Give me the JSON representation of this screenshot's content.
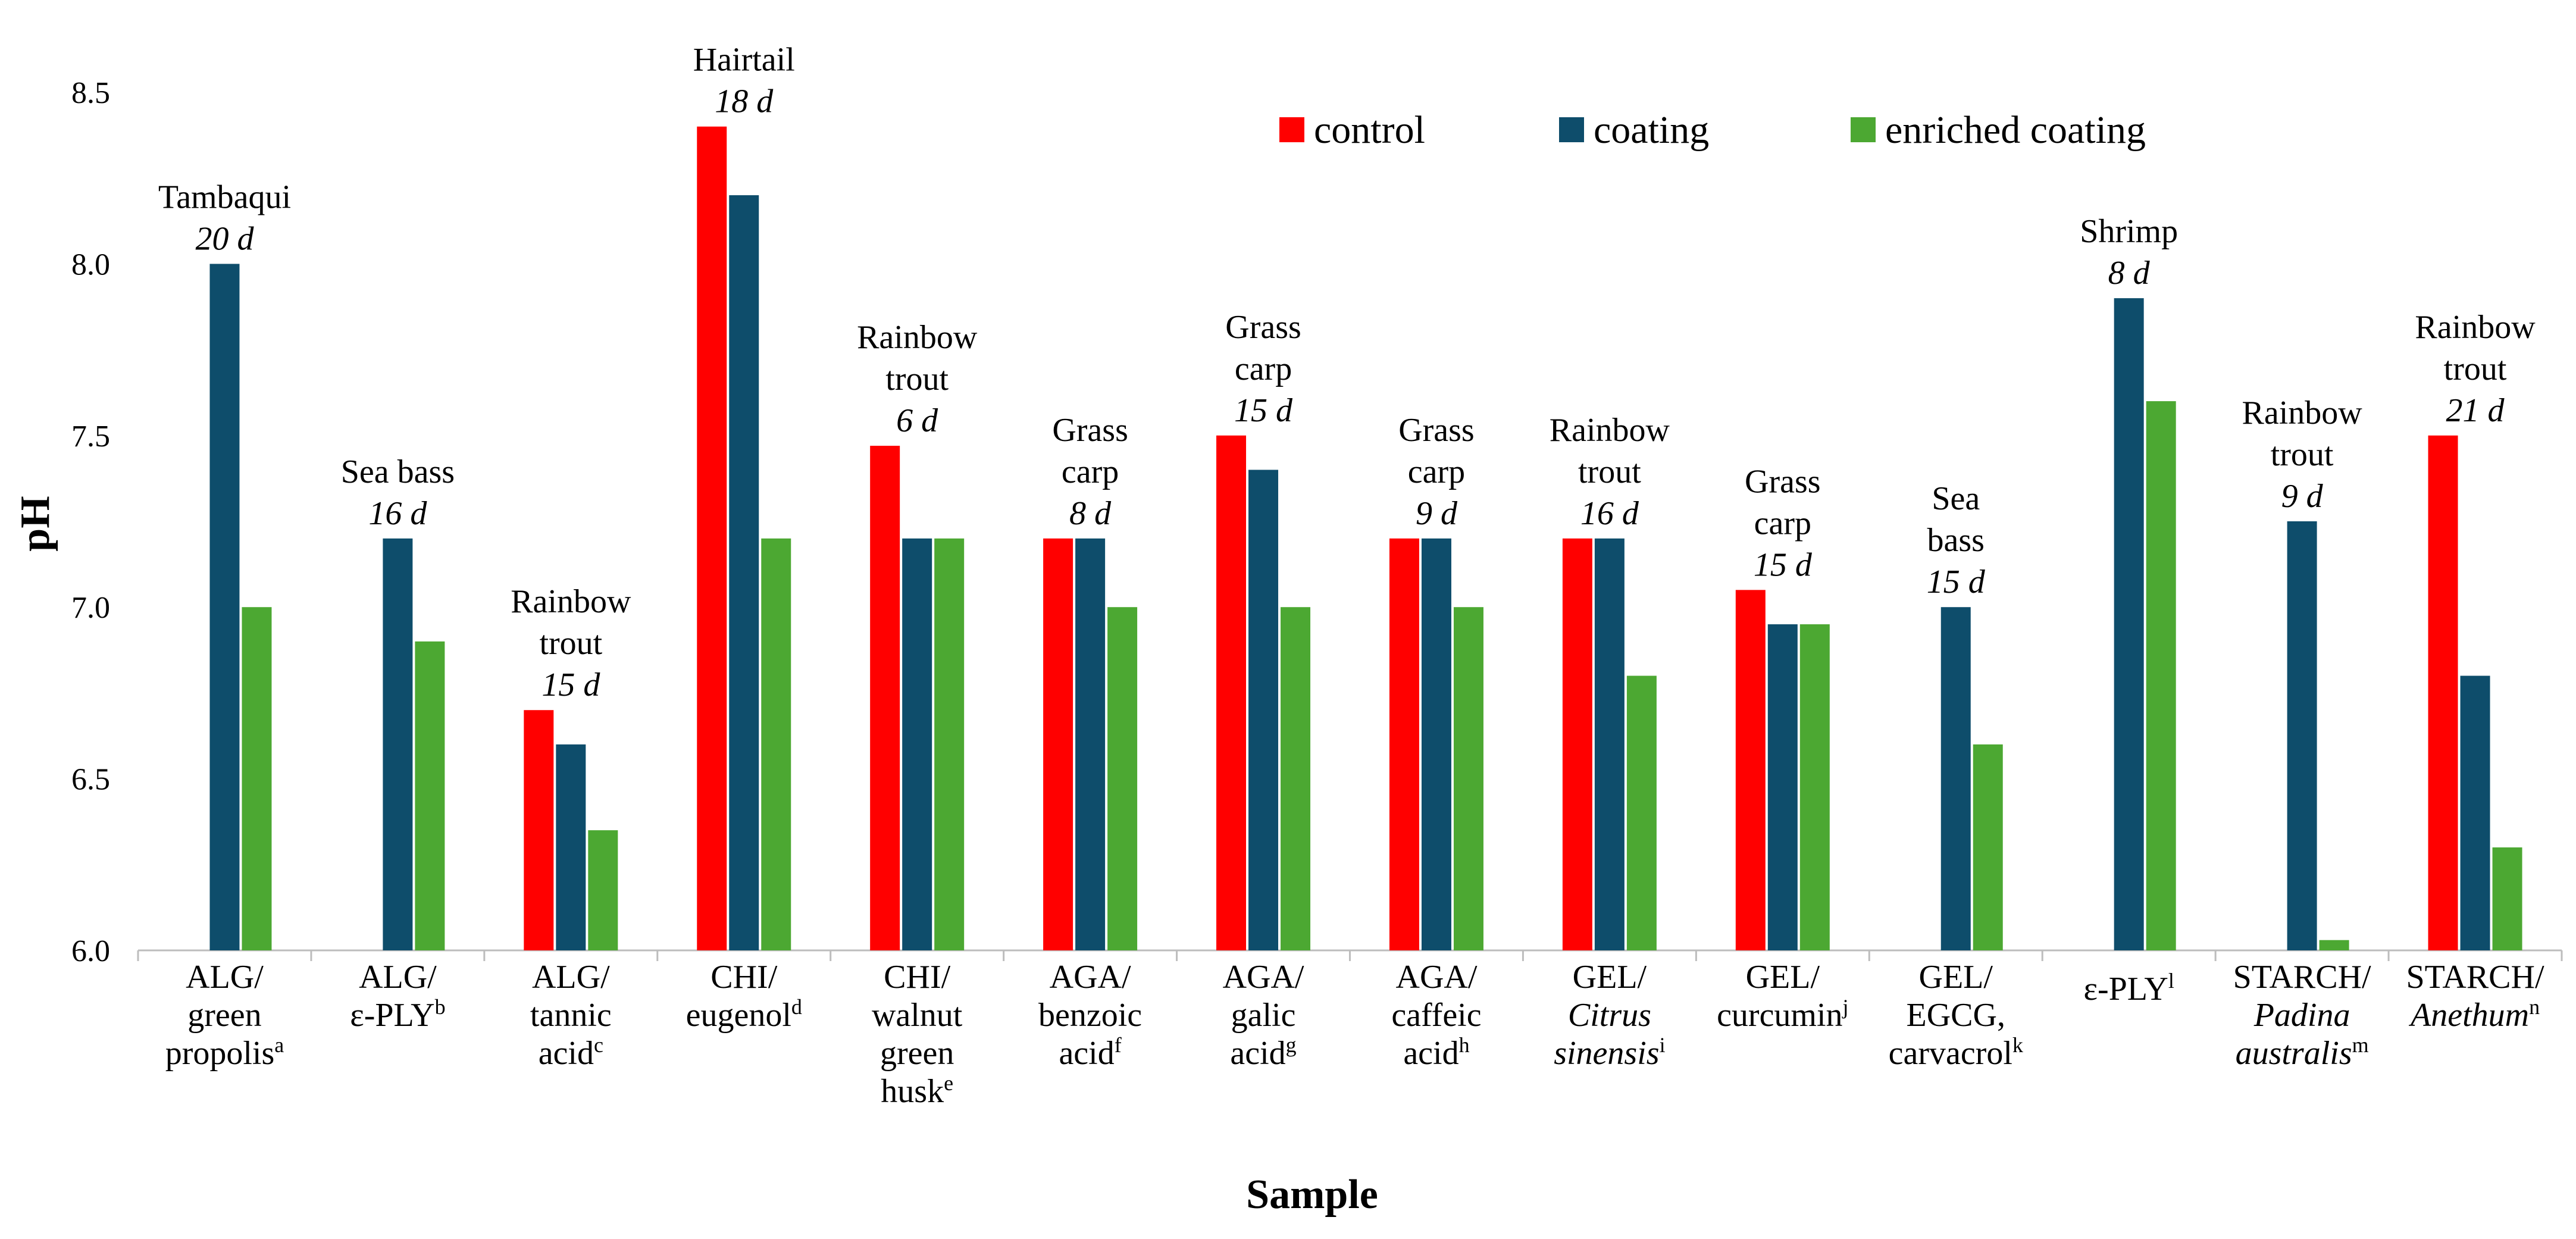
{
  "chart_data": {
    "type": "bar",
    "xlabel": "Sample",
    "ylabel": "pH",
    "ylim": [
      6.0,
      8.5
    ],
    "yticks": [
      "6.0",
      "6.5",
      "7.0",
      "7.5",
      "8.0",
      "8.5"
    ],
    "grid": false,
    "legend_position": "top-right",
    "series": [
      {
        "name": "control",
        "color": "#ff0000",
        "values": [
          null,
          null,
          6.7,
          8.4,
          7.47,
          7.2,
          7.5,
          7.2,
          7.2,
          7.05,
          null,
          null,
          null,
          7.5
        ]
      },
      {
        "name": "coating",
        "color": "#0e4d6b",
        "values": [
          8.0,
          7.2,
          6.6,
          8.2,
          7.2,
          7.2,
          7.4,
          7.2,
          7.2,
          6.95,
          7.0,
          7.9,
          7.25,
          6.8
        ]
      },
      {
        "name": "enriched coating",
        "color": "#4ca832",
        "values": [
          7.0,
          6.9,
          6.35,
          7.2,
          7.2,
          7.0,
          7.0,
          7.0,
          6.8,
          6.95,
          6.6,
          7.6,
          6.03,
          6.3
        ]
      }
    ],
    "categories": [
      {
        "lines": [
          [
            {
              "t": "ALG/"
            }
          ],
          [
            {
              "t": "green"
            }
          ],
          [
            {
              "t": "propolis"
            },
            {
              "t": "a",
              "sup": true
            }
          ]
        ]
      },
      {
        "lines": [
          [
            {
              "t": "ALG/"
            }
          ],
          [
            {
              "t": "ε-PLY"
            },
            {
              "t": "b",
              "sup": true
            }
          ]
        ]
      },
      {
        "lines": [
          [
            {
              "t": "ALG/"
            }
          ],
          [
            {
              "t": "tannic"
            }
          ],
          [
            {
              "t": "acid"
            },
            {
              "t": "c",
              "sup": true
            }
          ]
        ]
      },
      {
        "lines": [
          [
            {
              "t": "CHI/"
            }
          ],
          [
            {
              "t": "eugenol"
            },
            {
              "t": "d",
              "sup": true
            }
          ]
        ]
      },
      {
        "lines": [
          [
            {
              "t": "CHI/"
            }
          ],
          [
            {
              "t": "walnut"
            }
          ],
          [
            {
              "t": "green"
            }
          ],
          [
            {
              "t": "husk"
            },
            {
              "t": "e",
              "sup": true
            }
          ]
        ]
      },
      {
        "lines": [
          [
            {
              "t": "AGA/"
            }
          ],
          [
            {
              "t": "benzoic"
            }
          ],
          [
            {
              "t": "acid"
            },
            {
              "t": "f",
              "sup": true
            }
          ]
        ]
      },
      {
        "lines": [
          [
            {
              "t": "AGA/"
            }
          ],
          [
            {
              "t": "galic"
            }
          ],
          [
            {
              "t": "acid"
            },
            {
              "t": "g",
              "sup": true
            }
          ]
        ]
      },
      {
        "lines": [
          [
            {
              "t": "AGA/"
            }
          ],
          [
            {
              "t": "caffeic"
            }
          ],
          [
            {
              "t": "acid"
            },
            {
              "t": "h",
              "sup": true
            }
          ]
        ]
      },
      {
        "lines": [
          [
            {
              "t": "GEL/"
            }
          ],
          [
            {
              "t": "Citrus",
              "it": true
            }
          ],
          [
            {
              "t": "sinensis",
              "it": true
            },
            {
              "t": "i",
              "sup": true
            }
          ]
        ]
      },
      {
        "lines": [
          [
            {
              "t": "GEL/"
            }
          ],
          [
            {
              "t": "curcumin"
            },
            {
              "t": "j",
              "sup": true
            }
          ]
        ]
      },
      {
        "lines": [
          [
            {
              "t": "GEL/"
            }
          ],
          [
            {
              "t": "EGCG,"
            }
          ],
          [
            {
              "t": "carvacrol"
            },
            {
              "t": "k",
              "sup": true
            }
          ]
        ]
      },
      {
        "lines": [
          [
            {
              "t": "ε-PLY"
            },
            {
              "t": "l",
              "sup": true
            }
          ]
        ]
      },
      {
        "lines": [
          [
            {
              "t": "STARCH/"
            }
          ],
          [
            {
              "t": "Padina",
              "it": true
            }
          ],
          [
            {
              "t": "australis",
              "it": true
            },
            {
              "t": "m",
              "sup": true
            }
          ]
        ]
      },
      {
        "lines": [
          [
            {
              "t": "STARCH/"
            }
          ],
          [
            {
              "t": "Anethum",
              "it": true
            },
            {
              "t": "n",
              "sup": true
            }
          ]
        ]
      }
    ],
    "annotations": [
      {
        "species": [
          "Tambaqui"
        ],
        "days": "20 d"
      },
      {
        "species": [
          "Sea bass"
        ],
        "days": "16 d"
      },
      {
        "species": [
          "Rainbow",
          "trout"
        ],
        "days": "15 d"
      },
      {
        "species": [
          "Hairtail"
        ],
        "days": "18 d"
      },
      {
        "species": [
          "Rainbow",
          "trout"
        ],
        "days": "6 d"
      },
      {
        "species": [
          "Grass",
          "carp"
        ],
        "days": "8 d"
      },
      {
        "species": [
          "Grass",
          "carp"
        ],
        "days": "15 d"
      },
      {
        "species": [
          "Grass",
          "carp"
        ],
        "days": "9 d"
      },
      {
        "species": [
          "Rainbow",
          "trout"
        ],
        "days": "16 d"
      },
      {
        "species": [
          "Grass",
          "carp"
        ],
        "days": "15 d"
      },
      {
        "species": [
          "Sea",
          "bass"
        ],
        "days": "15 d"
      },
      {
        "species": [
          "Shrimp"
        ],
        "days": "8 d"
      },
      {
        "species": [
          "Rainbow",
          "trout"
        ],
        "days": "9 d"
      },
      {
        "species": [
          "Rainbow",
          "trout"
        ],
        "days": "21 d"
      }
    ]
  }
}
